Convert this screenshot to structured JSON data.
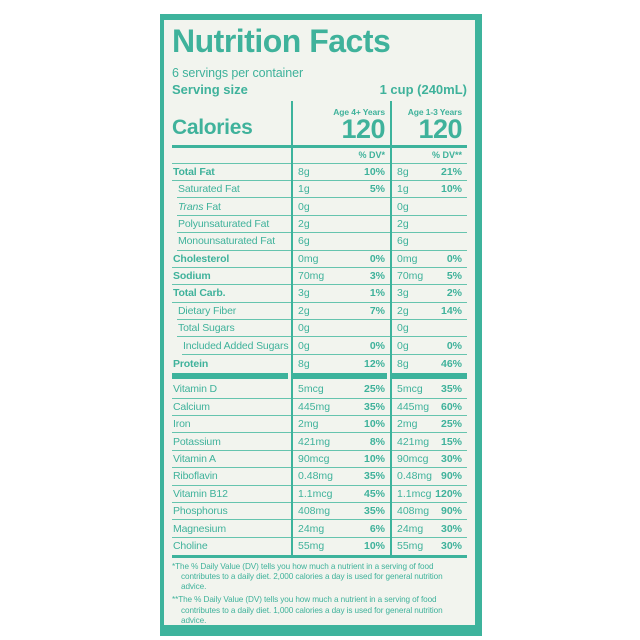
{
  "header": {
    "title": "Nutrition Facts",
    "servings_per_container": "6 servings per container",
    "serving_size_label": "Serving size",
    "serving_size_value": "1 cup (240mL)"
  },
  "calories": {
    "label": "Calories",
    "col1_header": "Age 4+ Years",
    "col1_value": "120",
    "col2_header": "Age 1-3 Years",
    "col2_value": "120",
    "dv_header_1": "% DV*",
    "dv_header_2": "% DV**"
  },
  "nutrients": [
    {
      "name": "Total Fat",
      "bold": true,
      "indent": 0,
      "amount1": "8g",
      "dv1": "10%",
      "amount2": "8g",
      "dv2": "21%"
    },
    {
      "name": "Saturated Fat",
      "bold": false,
      "indent": 5,
      "amount1": "1g",
      "dv1": "5%",
      "amount2": "1g",
      "dv2": "10%"
    },
    {
      "italic_prefix": "Trans",
      "name": "Fat",
      "bold": false,
      "indent": 5,
      "amount1": "0g",
      "dv1": "",
      "amount2": "0g",
      "dv2": ""
    },
    {
      "name": "Polyunsaturated Fat",
      "bold": false,
      "indent": 5,
      "amount1": "2g",
      "dv1": "",
      "amount2": "2g",
      "dv2": ""
    },
    {
      "name": "Monounsaturated Fat",
      "bold": false,
      "indent": 5,
      "amount1": "6g",
      "dv1": "",
      "amount2": "6g",
      "dv2": ""
    },
    {
      "name": "Cholesterol",
      "bold": true,
      "indent": 0,
      "amount1": "0mg",
      "dv1": "0%",
      "amount2": "0mg",
      "dv2": "0%"
    },
    {
      "name": "Sodium",
      "bold": true,
      "indent": 0,
      "amount1": "70mg",
      "dv1": "3%",
      "amount2": "70mg",
      "dv2": "5%"
    },
    {
      "name": "Total Carb.",
      "bold": true,
      "indent": 0,
      "amount1": "3g",
      "dv1": "1%",
      "amount2": "3g",
      "dv2": "2%"
    },
    {
      "name": "Dietary Fiber",
      "bold": false,
      "indent": 5,
      "amount1": "2g",
      "dv1": "7%",
      "amount2": "2g",
      "dv2": "14%"
    },
    {
      "name": "Total Sugars",
      "bold": false,
      "indent": 5,
      "amount1": "0g",
      "dv1": "",
      "amount2": "0g",
      "dv2": ""
    },
    {
      "name": "Included Added Sugars",
      "bold": false,
      "indent": 10,
      "amount1": "0g",
      "dv1": "0%",
      "amount2": "0g",
      "dv2": "0%"
    },
    {
      "name": "Protein",
      "bold": true,
      "indent": 0,
      "amount1": "8g",
      "dv1": "12%",
      "amount2": "8g",
      "dv2": "46%"
    }
  ],
  "vitamins": [
    {
      "name": "Vitamin D",
      "bold": false,
      "indent": 0,
      "amount1": "5mcg",
      "dv1": "25%",
      "amount2": "5mcg",
      "dv2": "35%"
    },
    {
      "name": "Calcium",
      "bold": false,
      "indent": 0,
      "amount1": "445mg",
      "dv1": "35%",
      "amount2": "445mg",
      "dv2": "60%"
    },
    {
      "name": "Iron",
      "bold": false,
      "indent": 0,
      "amount1": "2mg",
      "dv1": "10%",
      "amount2": "2mg",
      "dv2": "25%"
    },
    {
      "name": "Potassium",
      "bold": false,
      "indent": 0,
      "amount1": "421mg",
      "dv1": "8%",
      "amount2": "421mg",
      "dv2": "15%"
    },
    {
      "name": "Vitamin A",
      "bold": false,
      "indent": 0,
      "amount1": "90mcg",
      "dv1": "10%",
      "amount2": "90mcg",
      "dv2": "30%"
    },
    {
      "name": "Riboflavin",
      "bold": false,
      "indent": 0,
      "amount1": "0.48mg",
      "dv1": "35%",
      "amount2": "0.48mg",
      "dv2": "90%"
    },
    {
      "name": "Vitamin B12",
      "bold": false,
      "indent": 0,
      "amount1": "1.1mcg",
      "dv1": "45%",
      "amount2": "1.1mcg",
      "dv2": "120%"
    },
    {
      "name": "Phosphorus",
      "bold": false,
      "indent": 0,
      "amount1": "408mg",
      "dv1": "35%",
      "amount2": "408mg",
      "dv2": "90%"
    },
    {
      "name": "Magnesium",
      "bold": false,
      "indent": 0,
      "amount1": "24mg",
      "dv1": "6%",
      "amount2": "24mg",
      "dv2": "30%"
    },
    {
      "name": "Choline",
      "bold": false,
      "indent": 0,
      "amount1": "55mg",
      "dv1": "10%",
      "amount2": "55mg",
      "dv2": "30%"
    }
  ],
  "footnotes": [
    {
      "marker": "*",
      "text": "The % Daily Value (DV) tells you how much a nutrient in a serving of food contributes to a daily diet. 2,000 calories a day is used for general nutrition advice."
    },
    {
      "marker": "**",
      "text": "The % Daily Value (DV) tells you how much a nutrient in a serving of food contributes to a daily diet. 1,000 calories a day is used for general nutrition advice."
    }
  ],
  "colors": {
    "accent": "#3db39c",
    "label_background": "#f2f4ee",
    "page_background": "#ffffff"
  }
}
